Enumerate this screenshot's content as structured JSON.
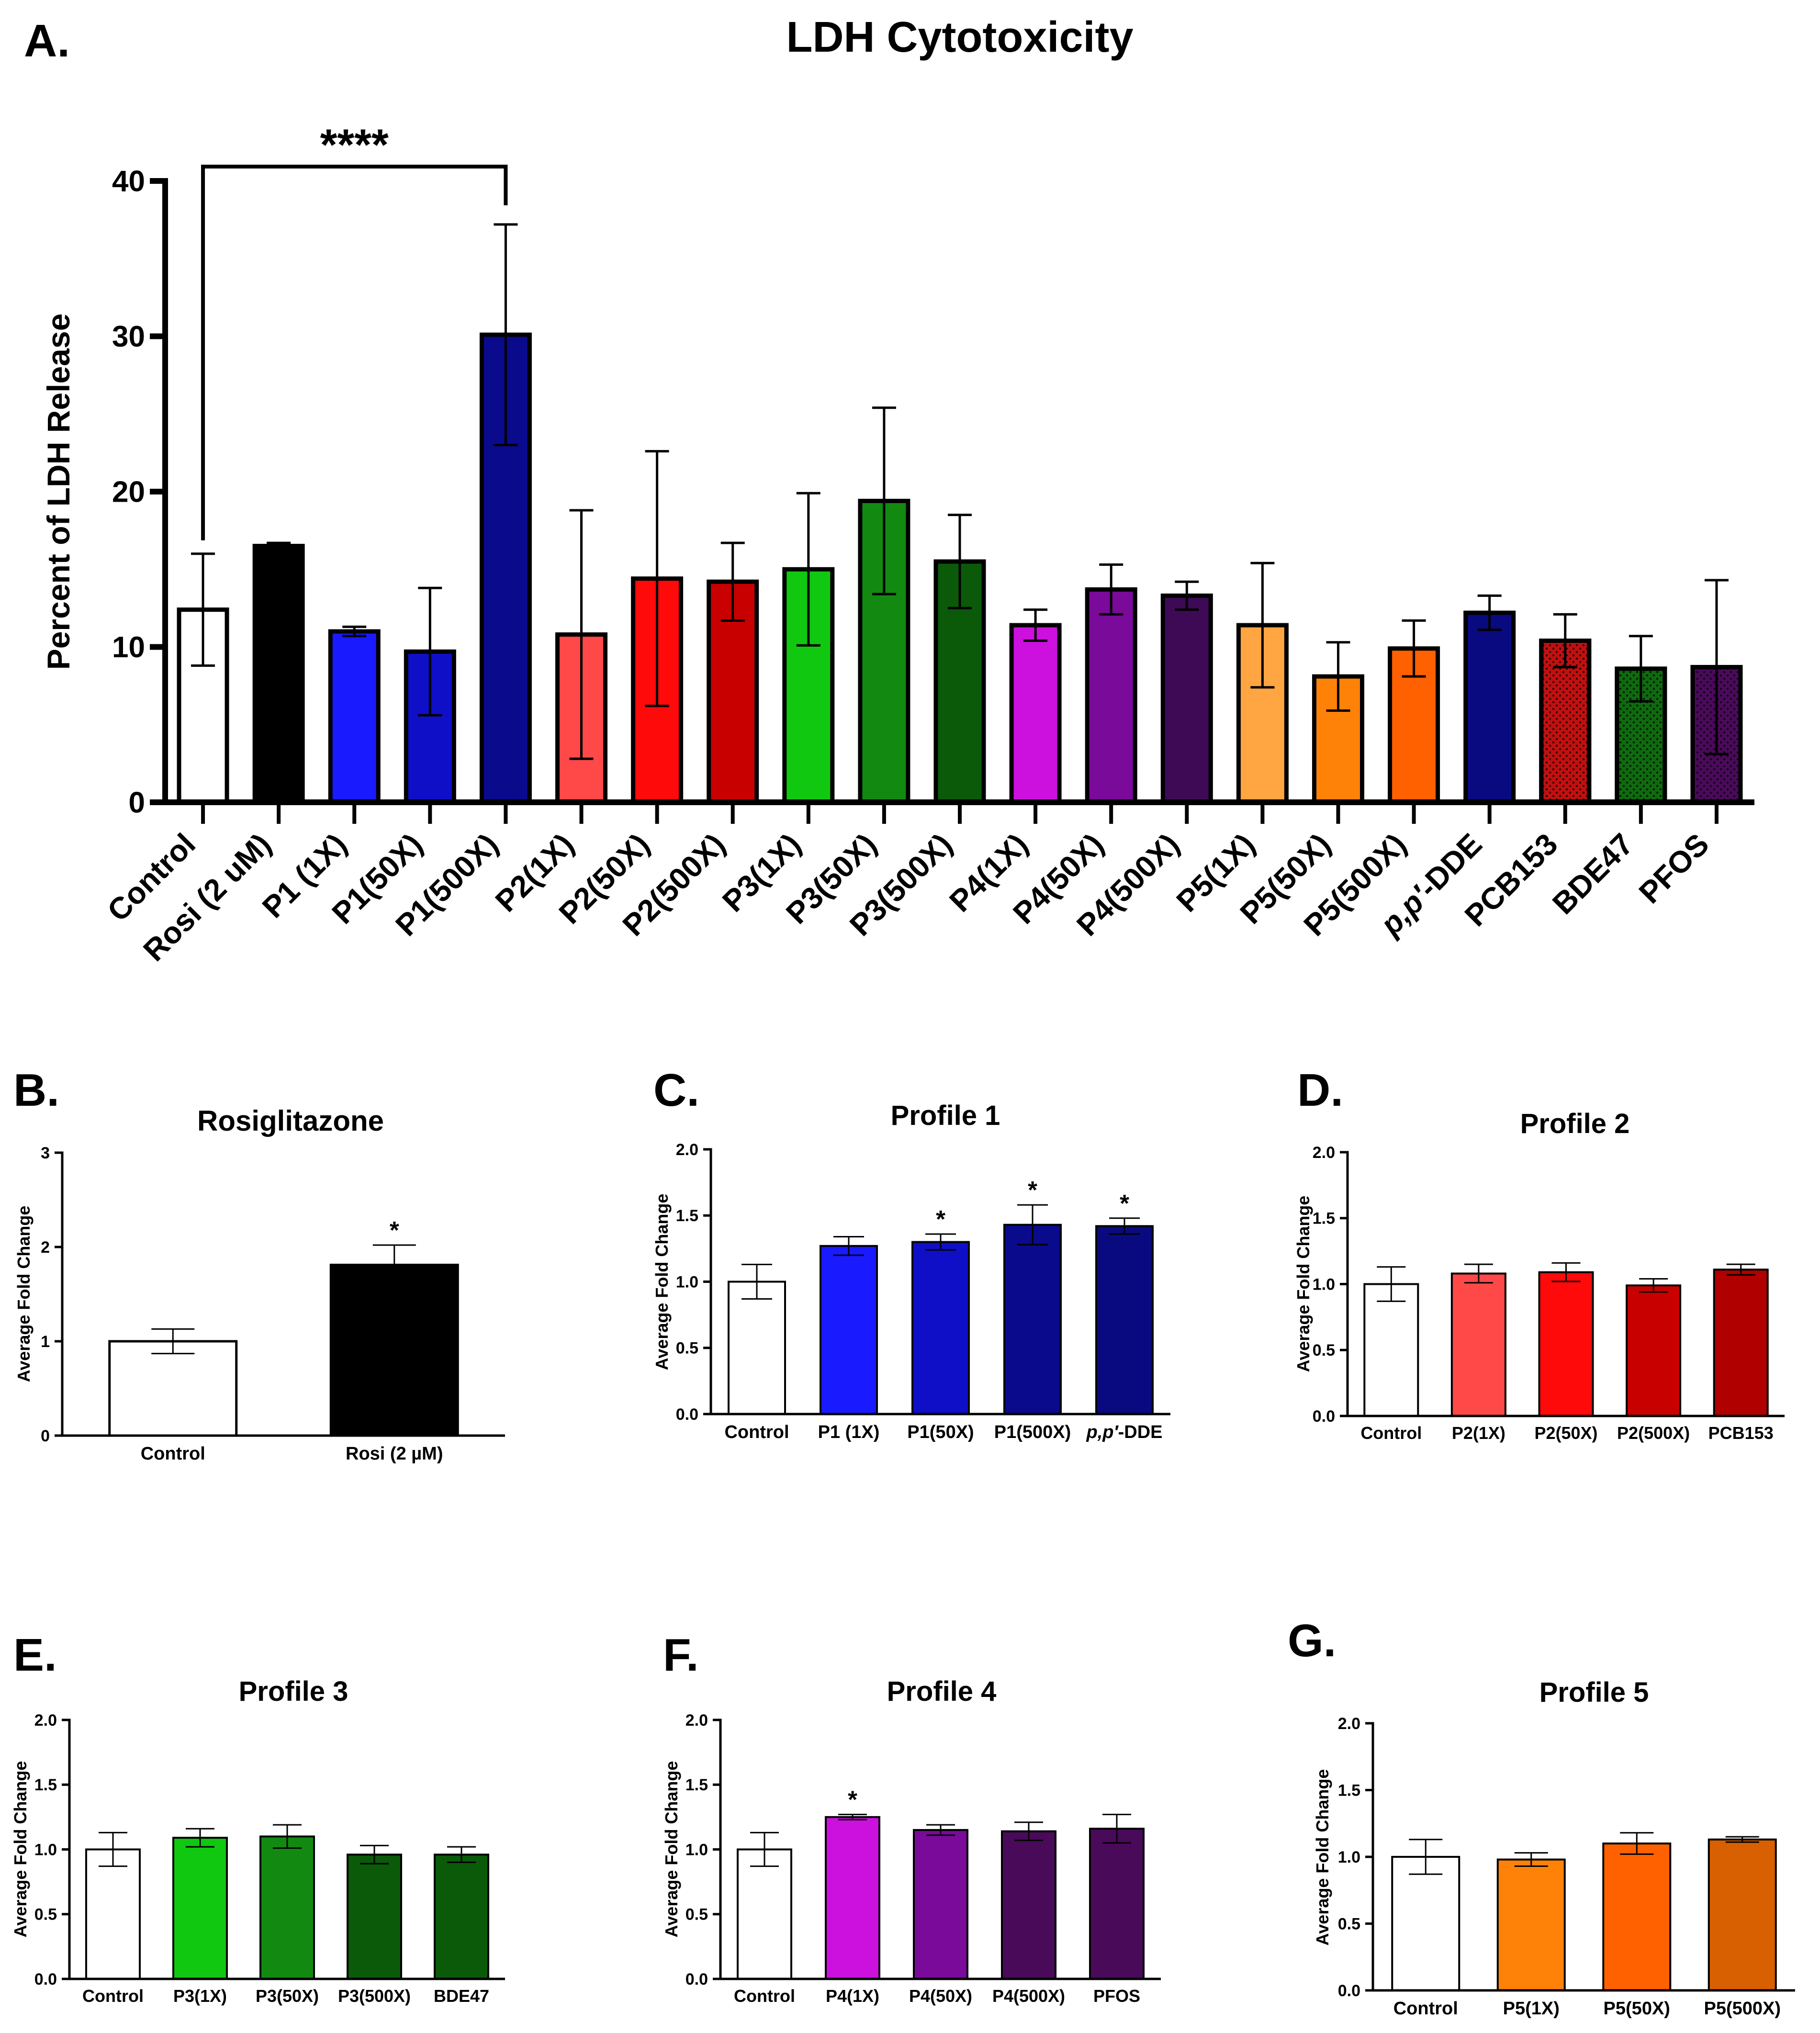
{
  "chart_data": [
    {
      "panel": "A.",
      "type": "bar",
      "title": "LDH Cytotoxicity",
      "ylabel": "Percent of LDH Release",
      "ylim": [
        0,
        40
      ],
      "yticks": [
        0,
        10,
        20,
        30,
        40
      ],
      "significance": {
        "from": "Control",
        "to": "P1(500X)",
        "label": "****"
      },
      "categories": [
        "Control",
        "Rosi (2 uM)",
        "P1 (1X)",
        "P1(50X)",
        "P1(500X)",
        "P2(1X)",
        "P2(50X)",
        "P2(500X)",
        "P3(1X)",
        "P3(50X)",
        "P3(500X)",
        "P4(1X)",
        "P4(50X)",
        "P4(500X)",
        "P5(1X)",
        "P5(50X)",
        "P5(500X)",
        "p,p′-DDE",
        "PCB153",
        "BDE47",
        "PFOS"
      ],
      "values": [
        12.4,
        16.5,
        11.0,
        9.7,
        30.1,
        10.8,
        14.4,
        14.2,
        15.0,
        19.4,
        15.5,
        11.4,
        13.7,
        13.3,
        11.4,
        8.1,
        9.9,
        12.2,
        10.4,
        8.6,
        8.7
      ],
      "errors": [
        3.6,
        0.2,
        0.3,
        4.1,
        7.1,
        8.0,
        8.2,
        2.5,
        4.9,
        6.0,
        3.0,
        1.0,
        1.6,
        0.9,
        4.0,
        2.2,
        1.8,
        1.1,
        1.7,
        2.1,
        5.6
      ],
      "colors": [
        "#ffffff",
        "#000000",
        "#1a1aff",
        "#0f0fc8",
        "#0a0a8c",
        "#ff4848",
        "#ff0a0a",
        "#c80000",
        "#10c810",
        "#128a12",
        "#0a5a0a",
        "#cc10dd",
        "#7a0a9a",
        "#3e0a55",
        "#ffa542",
        "#ff8208",
        "#ff6000",
        "#0a0a80",
        "#c01010",
        "#0f6a0f",
        "#4a0a5a"
      ],
      "patterns": [
        null,
        null,
        null,
        null,
        null,
        null,
        null,
        null,
        null,
        null,
        null,
        null,
        null,
        null,
        null,
        null,
        null,
        null,
        "dots",
        "dots",
        "dots"
      ]
    },
    {
      "panel": "B.",
      "type": "bar",
      "title": "Rosiglitazone",
      "ylabel": "Average Fold Change",
      "ylim": [
        0,
        3
      ],
      "yticks": [
        "0",
        "1",
        "2",
        "3"
      ],
      "categories": [
        "Control",
        "Rosi (2 µM)"
      ],
      "values": [
        1.0,
        1.81
      ],
      "errors": [
        0.13,
        0.21
      ],
      "colors": [
        "#ffffff",
        "#000000"
      ],
      "stars": [
        "",
        "*"
      ]
    },
    {
      "panel": "C.",
      "type": "bar",
      "title": "Profile 1",
      "ylabel": "Average Fold Change",
      "ylim": [
        0,
        2
      ],
      "yticks": [
        "0.0",
        "0.5",
        "1.0",
        "1.5",
        "2.0"
      ],
      "categories": [
        "Control",
        "P1 (1X)",
        "P1(50X)",
        "P1(500X)",
        "p,p′-DDE"
      ],
      "values": [
        1.0,
        1.27,
        1.3,
        1.43,
        1.42
      ],
      "errors": [
        0.13,
        0.07,
        0.06,
        0.15,
        0.06
      ],
      "colors": [
        "#ffffff",
        "#1a1aff",
        "#0f0fc8",
        "#0a0a8c",
        "#0a0a80"
      ],
      "stars": [
        "",
        "",
        "*",
        "*",
        "*"
      ]
    },
    {
      "panel": "D.",
      "type": "bar",
      "title": "Profile 2",
      "ylabel": "Average Fold Change",
      "ylim": [
        0,
        2
      ],
      "yticks": [
        "0.0",
        "0.5",
        "1.0",
        "1.5",
        "2.0"
      ],
      "categories": [
        "Control",
        "P2(1X)",
        "P2(50X)",
        "P2(500X)",
        "PCB153"
      ],
      "values": [
        1.0,
        1.08,
        1.09,
        0.99,
        1.11
      ],
      "errors": [
        0.13,
        0.07,
        0.07,
        0.05,
        0.04
      ],
      "colors": [
        "#ffffff",
        "#ff4848",
        "#ff0a0a",
        "#c80000",
        "#b00000"
      ],
      "stars": [
        "",
        "",
        "",
        "",
        ""
      ]
    },
    {
      "panel": "E.",
      "type": "bar",
      "title": "Profile 3",
      "ylabel": "Average Fold Change",
      "ylim": [
        0,
        2
      ],
      "yticks": [
        "0.0",
        "0.5",
        "1.0",
        "1.5",
        "2.0"
      ],
      "categories": [
        "Control",
        "P3(1X)",
        "P3(50X)",
        "P3(500X)",
        "BDE47"
      ],
      "values": [
        1.0,
        1.09,
        1.1,
        0.96,
        0.96
      ],
      "errors": [
        0.13,
        0.07,
        0.09,
        0.07,
        0.06
      ],
      "colors": [
        "#ffffff",
        "#10c810",
        "#128a12",
        "#0a5a0a",
        "#0a5a0a"
      ],
      "stars": [
        "",
        "",
        "",
        "",
        ""
      ]
    },
    {
      "panel": "F.",
      "type": "bar",
      "title": "Profile 4",
      "ylabel": "Average Fold Change",
      "ylim": [
        0,
        2
      ],
      "yticks": [
        "0.0",
        "0.5",
        "1.0",
        "1.5",
        "2.0"
      ],
      "categories": [
        "Control",
        "P4(1X)",
        "P4(50X)",
        "P4(500X)",
        "PFOS"
      ],
      "values": [
        1.0,
        1.25,
        1.15,
        1.14,
        1.16
      ],
      "errors": [
        0.13,
        0.02,
        0.04,
        0.07,
        0.11
      ],
      "colors": [
        "#ffffff",
        "#cc10dd",
        "#7a0a9a",
        "#4a0a5a",
        "#4a0a5a"
      ],
      "stars": [
        "",
        "*",
        "",
        "",
        ""
      ]
    },
    {
      "panel": "G.",
      "type": "bar",
      "title": "Profile 5",
      "ylabel": "Average Fold Change",
      "ylim": [
        0,
        2
      ],
      "yticks": [
        "0.0",
        "0.5",
        "1.0",
        "1.5",
        "2.0"
      ],
      "categories": [
        "Control",
        "P5(1X)",
        "P5(50X)",
        "P5(500X)"
      ],
      "values": [
        1.0,
        0.98,
        1.1,
        1.13
      ],
      "errors": [
        0.13,
        0.05,
        0.08,
        0.02
      ],
      "colors": [
        "#ffffff",
        "#ff8208",
        "#ff6000",
        "#d96000"
      ],
      "stars": [
        "",
        "",
        "",
        ""
      ]
    }
  ]
}
